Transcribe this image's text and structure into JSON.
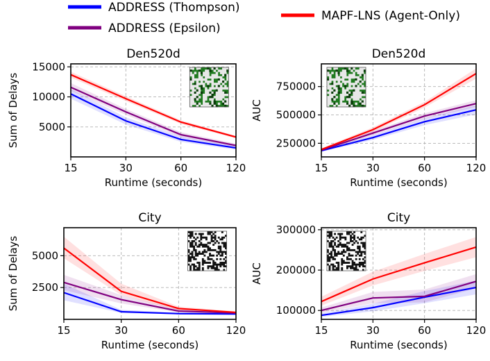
{
  "legend": {
    "placement": "top",
    "items": [
      {
        "label": "ADDRESS (Thompson)",
        "color": "#0000ff"
      },
      {
        "label": "ADDRESS (Epsilon)",
        "color": "#800080"
      },
      {
        "label": "MAPF-LNS (Agent-Only)",
        "color": "#ff0000"
      }
    ]
  },
  "chart_data": [
    {
      "type": "line",
      "title": "Den520d",
      "xlabel": "Runtime (seconds)",
      "ylabel": "Sum of Delays",
      "x": [
        15,
        30,
        60,
        120
      ],
      "xticks": [
        "15",
        "30",
        "60",
        "120"
      ],
      "xscale": "log",
      "ylim": [
        0,
        15500
      ],
      "yticks": [
        5000,
        10000,
        15000
      ],
      "yticklabels": [
        "5000",
        "10000",
        "15000"
      ],
      "grid": true,
      "inset_map": "den520d",
      "series": [
        {
          "name": "ADDRESS (Thompson)",
          "color": "#0000ff",
          "values": [
            10500,
            6000,
            2900,
            1500
          ],
          "lower": [
            9700,
            5400,
            2500,
            1200
          ],
          "upper": [
            11300,
            6600,
            3400,
            1800
          ]
        },
        {
          "name": "ADDRESS (Epsilon)",
          "color": "#800080",
          "values": [
            11600,
            7500,
            3700,
            1900
          ],
          "lower": [
            11000,
            7000,
            3300,
            1600
          ],
          "upper": [
            12300,
            8000,
            4100,
            2200
          ]
        },
        {
          "name": "MAPF-LNS (Agent-Only)",
          "color": "#ff0000",
          "values": [
            13700,
            9700,
            5800,
            3300
          ],
          "lower": [
            13200,
            9300,
            5500,
            3100
          ],
          "upper": [
            14200,
            10100,
            6100,
            3500
          ]
        }
      ]
    },
    {
      "type": "line",
      "title": "Den520d",
      "xlabel": "Runtime (seconds)",
      "ylabel": "AUC",
      "x": [
        15,
        30,
        60,
        120
      ],
      "xticks": [
        "15",
        "30",
        "60",
        "120"
      ],
      "xscale": "log",
      "ylim": [
        130000,
        950000
      ],
      "yticks": [
        250000,
        500000,
        750000
      ],
      "yticklabels": [
        "250000",
        "500000",
        "750000"
      ],
      "grid": true,
      "inset_map": "den520d",
      "series": [
        {
          "name": "ADDRESS (Thompson)",
          "color": "#0000ff",
          "values": [
            185000,
            300000,
            440000,
            545000
          ],
          "lower": [
            175000,
            280000,
            410000,
            505000
          ],
          "upper": [
            195000,
            320000,
            470000,
            585000
          ]
        },
        {
          "name": "ADDRESS (Epsilon)",
          "color": "#800080",
          "values": [
            190000,
            340000,
            490000,
            600000
          ],
          "lower": [
            182000,
            320000,
            465000,
            570000
          ],
          "upper": [
            200000,
            360000,
            515000,
            630000
          ]
        },
        {
          "name": "MAPF-LNS (Agent-Only)",
          "color": "#ff0000",
          "values": [
            195000,
            370000,
            590000,
            865000
          ],
          "lower": [
            185000,
            350000,
            565000,
            820000
          ],
          "upper": [
            205000,
            390000,
            615000,
            910000
          ]
        }
      ]
    },
    {
      "type": "line",
      "title": "City",
      "xlabel": "Runtime (seconds)",
      "ylabel": "Sum of Delays",
      "x": [
        15,
        30,
        60,
        120
      ],
      "xticks": [
        "15",
        "30",
        "60",
        "120"
      ],
      "xscale": "log",
      "ylim": [
        0,
        7200
      ],
      "yticks": [
        2500,
        5000
      ],
      "yticklabels": [
        "2500",
        "5000"
      ],
      "grid": true,
      "inset_map": "city",
      "series": [
        {
          "name": "ADDRESS (Thompson)",
          "color": "#0000ff",
          "values": [
            2100,
            600,
            450,
            420
          ],
          "lower": [
            1500,
            500,
            400,
            380
          ],
          "upper": [
            2800,
            750,
            520,
            470
          ]
        },
        {
          "name": "ADDRESS (Epsilon)",
          "color": "#800080",
          "values": [
            2900,
            1550,
            650,
            500
          ],
          "lower": [
            2300,
            1250,
            550,
            450
          ],
          "upper": [
            3500,
            1900,
            800,
            560
          ]
        },
        {
          "name": "MAPF-LNS (Agent-Only)",
          "color": "#ff0000",
          "values": [
            5600,
            2200,
            850,
            550
          ],
          "lower": [
            4800,
            1900,
            700,
            490
          ],
          "upper": [
            6500,
            2800,
            1000,
            620
          ]
        }
      ]
    },
    {
      "type": "line",
      "title": "City",
      "xlabel": "Runtime (seconds)",
      "ylabel": "AUC",
      "x": [
        15,
        30,
        60,
        120
      ],
      "xticks": [
        "15",
        "30",
        "60",
        "120"
      ],
      "xscale": "log",
      "ylim": [
        78000,
        305000
      ],
      "yticks": [
        100000,
        200000,
        300000
      ],
      "yticklabels": [
        "100000",
        "200000",
        "300000"
      ],
      "grid": true,
      "inset_map": "city",
      "series": [
        {
          "name": "ADDRESS (Thompson)",
          "color": "#0000ff",
          "values": [
            88000,
            107000,
            133000,
            157000
          ],
          "lower": [
            84000,
            98000,
            118000,
            140000
          ],
          "upper": [
            93000,
            117000,
            148000,
            174000
          ]
        },
        {
          "name": "ADDRESS (Epsilon)",
          "color": "#800080",
          "values": [
            100000,
            131000,
            135000,
            172000
          ],
          "lower": [
            94000,
            118000,
            120000,
            155000
          ],
          "upper": [
            107000,
            146000,
            152000,
            190000
          ]
        },
        {
          "name": "MAPF-LNS (Agent-Only)",
          "color": "#ff0000",
          "values": [
            122000,
            178000,
            218000,
            257000
          ],
          "lower": [
            112000,
            162000,
            198000,
            232000
          ],
          "upper": [
            134000,
            196000,
            240000,
            282000
          ]
        }
      ]
    }
  ]
}
